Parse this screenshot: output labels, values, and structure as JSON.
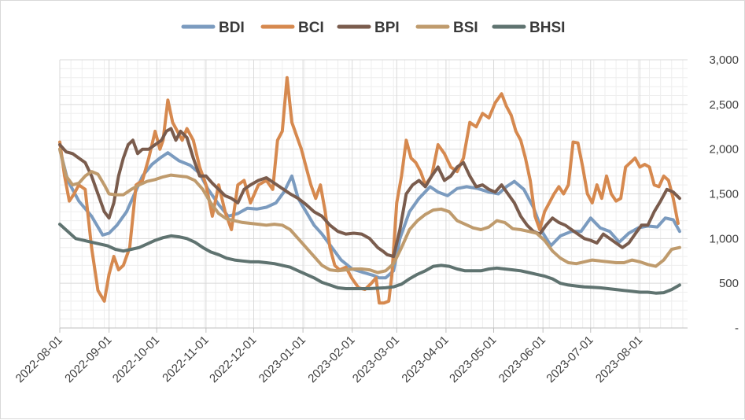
{
  "chart_data": {
    "type": "line",
    "title": "",
    "xlabel": "",
    "ylabel": "",
    "ylim": [
      0,
      3000
    ],
    "y_ticks": [
      0,
      500,
      1000,
      1500,
      2000,
      2500,
      3000
    ],
    "y_tick_labels": [
      "-",
      "500",
      "1,000",
      "1,500",
      "2,000",
      "2,500",
      "3,000"
    ],
    "x_tick_labels": [
      "2022-08-01",
      "2022-09-01",
      "2022-10-01",
      "2022-11-01",
      "2022-12-01",
      "2023-01-01",
      "2023-02-01",
      "2023-03-01",
      "2023-04-01",
      "2023-05-01",
      "2023-06-01",
      "2023-07-01",
      "2023-08-01"
    ],
    "x_tick_days": [
      0,
      31,
      61,
      92,
      122,
      153,
      184,
      212,
      243,
      273,
      304,
      334,
      365
    ],
    "x_range_days": [
      0,
      395
    ],
    "grid": true,
    "legend_position": "top-center",
    "series": [
      {
        "name": "BDI",
        "color": "#7b9bbf",
        "x": [
          0,
          5,
          12,
          20,
          27,
          31,
          36,
          42,
          47,
          52,
          58,
          63,
          68,
          75,
          82,
          88,
          93,
          100,
          106,
          112,
          118,
          124,
          130,
          136,
          141,
          146,
          150,
          155,
          160,
          165,
          170,
          177,
          184,
          191,
          197,
          201,
          205,
          210,
          214,
          220,
          226,
          233,
          238,
          244,
          250,
          256,
          263,
          270,
          276,
          281,
          286,
          292,
          298,
          304,
          309,
          315,
          322,
          328,
          334,
          340,
          346,
          352,
          358,
          364,
          370,
          376,
          381,
          386,
          390
        ],
        "values": [
          2000,
          1650,
          1420,
          1250,
          1040,
          1060,
          1150,
          1300,
          1500,
          1700,
          1830,
          1900,
          1960,
          1870,
          1820,
          1730,
          1560,
          1380,
          1250,
          1280,
          1340,
          1330,
          1350,
          1400,
          1520,
          1700,
          1450,
          1300,
          1150,
          1050,
          930,
          760,
          660,
          620,
          590,
          560,
          560,
          640,
          1000,
          1300,
          1450,
          1580,
          1520,
          1480,
          1560,
          1580,
          1560,
          1520,
          1500,
          1580,
          1640,
          1550,
          1350,
          1060,
          920,
          1030,
          1080,
          1080,
          1230,
          1120,
          1080,
          960,
          1060,
          1120,
          1140,
          1130,
          1230,
          1210,
          1080
        ]
      },
      {
        "name": "BCI",
        "color": "#d6894f",
        "x": [
          0,
          3,
          6,
          9,
          12,
          16,
          20,
          24,
          28,
          31,
          34,
          37,
          40,
          44,
          48,
          52,
          56,
          60,
          63,
          65,
          68,
          71,
          74,
          77,
          80,
          84,
          88,
          92,
          96,
          100,
          104,
          108,
          112,
          116,
          120,
          125,
          130,
          134,
          137,
          140,
          143,
          146,
          149,
          152,
          155,
          158,
          161,
          164,
          167,
          170,
          173,
          176,
          180,
          184,
          188,
          192,
          196,
          199,
          201,
          204,
          207,
          209,
          212,
          215,
          218,
          221,
          224,
          227,
          230,
          234,
          238,
          242,
          246,
          250,
          254,
          258,
          262,
          266,
          270,
          274,
          278,
          281,
          284,
          287,
          290,
          293,
          296,
          299,
          302,
          305,
          308,
          311,
          314,
          317,
          320,
          323,
          326,
          329,
          332,
          335,
          338,
          341,
          344,
          347,
          350,
          353,
          356,
          359,
          362,
          365,
          368,
          371,
          374,
          377,
          380,
          383,
          386,
          389
        ],
        "values": [
          2080,
          1700,
          1420,
          1500,
          1600,
          1550,
          900,
          420,
          300,
          600,
          800,
          650,
          700,
          900,
          1600,
          1650,
          1900,
          2200,
          2000,
          2100,
          2550,
          2300,
          2200,
          2100,
          2230,
          2100,
          1800,
          1600,
          1250,
          1600,
          1300,
          1100,
          1600,
          1650,
          1400,
          1600,
          1650,
          1550,
          2100,
          2200,
          2800,
          2300,
          2150,
          2000,
          1800,
          1600,
          1450,
          1600,
          1300,
          900,
          700,
          650,
          680,
          550,
          450,
          430,
          500,
          560,
          280,
          280,
          300,
          600,
          1400,
          1700,
          2100,
          1900,
          1850,
          1750,
          1600,
          1700,
          2050,
          1950,
          1800,
          1750,
          1900,
          2300,
          2250,
          2400,
          2350,
          2520,
          2620,
          2480,
          2380,
          2200,
          2100,
          1900,
          1650,
          1250,
          1100,
          1300,
          1400,
          1500,
          1580,
          1500,
          1600,
          2080,
          2070,
          1800,
          1500,
          1400,
          1600,
          1450,
          1700,
          1500,
          1420,
          1450,
          1800,
          1850,
          1900,
          1800,
          1830,
          1800,
          1600,
          1580,
          1700,
          1650,
          1450,
          1170
        ]
      },
      {
        "name": "BPI",
        "color": "#7a5c4d",
        "x": [
          0,
          4,
          8,
          12,
          16,
          20,
          24,
          28,
          31,
          34,
          37,
          40,
          43,
          46,
          49,
          52,
          56,
          60,
          64,
          67,
          70,
          73,
          76,
          80,
          84,
          88,
          92,
          96,
          100,
          104,
          108,
          112,
          116,
          120,
          125,
          130,
          135,
          140,
          145,
          150,
          155,
          160,
          165,
          170,
          175,
          180,
          185,
          190,
          195,
          200,
          204,
          206,
          210,
          214,
          218,
          222,
          226,
          230,
          234,
          238,
          242,
          246,
          250,
          254,
          258,
          262,
          266,
          270,
          274,
          278,
          282,
          286,
          290,
          294,
          298,
          302,
          306,
          310,
          314,
          318,
          322,
          326,
          330,
          334,
          338,
          342,
          346,
          350,
          354,
          358,
          362,
          366,
          370,
          374,
          378,
          382,
          386,
          390
        ],
        "values": [
          2050,
          1970,
          1950,
          1900,
          1850,
          1700,
          1500,
          1300,
          1230,
          1400,
          1700,
          1900,
          2050,
          2100,
          1950,
          2000,
          2000,
          2050,
          2100,
          2200,
          2230,
          2100,
          2200,
          2130,
          1900,
          1700,
          1700,
          1620,
          1550,
          1480,
          1450,
          1400,
          1550,
          1600,
          1650,
          1680,
          1620,
          1560,
          1500,
          1450,
          1380,
          1300,
          1250,
          1150,
          1080,
          1050,
          1060,
          1050,
          1000,
          900,
          850,
          820,
          800,
          1100,
          1500,
          1600,
          1650,
          1580,
          1700,
          1800,
          1650,
          1700,
          1800,
          1850,
          1700,
          1580,
          1600,
          1550,
          1520,
          1600,
          1500,
          1400,
          1250,
          1150,
          1080,
          1050,
          1150,
          1230,
          1180,
          1150,
          1100,
          1050,
          1000,
          980,
          950,
          1050,
          1000,
          950,
          900,
          950,
          1050,
          1150,
          1150,
          1300,
          1420,
          1550,
          1520,
          1450
        ]
      },
      {
        "name": "BSI",
        "color": "#bf9b6d",
        "x": [
          0,
          4,
          8,
          12,
          16,
          20,
          24,
          28,
          31,
          35,
          40,
          45,
          50,
          55,
          60,
          65,
          70,
          75,
          80,
          85,
          90,
          95,
          100,
          105,
          110,
          115,
          120,
          125,
          130,
          135,
          140,
          145,
          150,
          155,
          160,
          165,
          170,
          175,
          180,
          185,
          190,
          195,
          200,
          205,
          210,
          215,
          220,
          225,
          230,
          235,
          240,
          245,
          250,
          255,
          260,
          265,
          270,
          275,
          280,
          285,
          290,
          295,
          300,
          305,
          310,
          315,
          320,
          325,
          330,
          335,
          340,
          345,
          350,
          355,
          360,
          365,
          370,
          375,
          380,
          385,
          390
        ],
        "values": [
          2000,
          1700,
          1600,
          1620,
          1700,
          1750,
          1720,
          1600,
          1500,
          1490,
          1490,
          1550,
          1600,
          1640,
          1660,
          1690,
          1710,
          1700,
          1690,
          1650,
          1550,
          1400,
          1280,
          1220,
          1200,
          1180,
          1170,
          1160,
          1150,
          1160,
          1150,
          1100,
          1000,
          900,
          800,
          700,
          650,
          640,
          650,
          660,
          660,
          650,
          620,
          640,
          720,
          900,
          1100,
          1200,
          1270,
          1320,
          1330,
          1300,
          1200,
          1160,
          1120,
          1100,
          1130,
          1200,
          1180,
          1110,
          1100,
          1080,
          1060,
          980,
          860,
          780,
          730,
          720,
          740,
          760,
          750,
          740,
          730,
          730,
          760,
          740,
          710,
          690,
          760,
          880,
          900
        ]
      },
      {
        "name": "BHSI",
        "color": "#5f7370",
        "x": [
          0,
          5,
          10,
          15,
          20,
          25,
          30,
          35,
          40,
          45,
          50,
          55,
          60,
          65,
          70,
          75,
          80,
          85,
          90,
          95,
          100,
          105,
          110,
          115,
          120,
          125,
          130,
          135,
          140,
          145,
          150,
          155,
          160,
          165,
          170,
          175,
          180,
          185,
          190,
          195,
          200,
          205,
          210,
          215,
          220,
          225,
          230,
          235,
          240,
          245,
          250,
          255,
          260,
          265,
          270,
          275,
          280,
          285,
          290,
          295,
          300,
          305,
          310,
          315,
          320,
          325,
          330,
          335,
          340,
          345,
          350,
          355,
          360,
          365,
          370,
          375,
          380,
          385,
          390
        ],
        "values": [
          1160,
          1080,
          1000,
          980,
          960,
          940,
          920,
          880,
          860,
          880,
          900,
          940,
          980,
          1010,
          1030,
          1020,
          1000,
          960,
          900,
          850,
          820,
          780,
          760,
          750,
          740,
          740,
          730,
          720,
          700,
          680,
          640,
          600,
          560,
          510,
          480,
          450,
          440,
          440,
          440,
          440,
          445,
          450,
          460,
          490,
          550,
          600,
          640,
          690,
          700,
          690,
          660,
          640,
          640,
          640,
          660,
          670,
          660,
          650,
          640,
          620,
          600,
          580,
          550,
          500,
          480,
          470,
          460,
          455,
          450,
          440,
          430,
          420,
          410,
          400,
          400,
          390,
          395,
          430,
          480
        ]
      }
    ]
  }
}
